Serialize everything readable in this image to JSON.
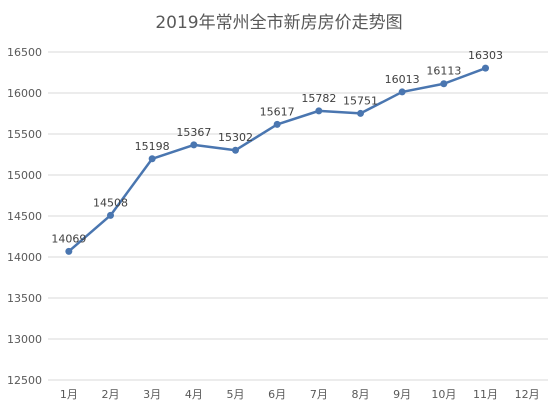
{
  "chart_data": {
    "type": "line",
    "title": "2019年常州全市新房房价走势图",
    "categories": [
      "1月",
      "2月",
      "3月",
      "4月",
      "5月",
      "6月",
      "7月",
      "8月",
      "9月",
      "10月",
      "11月",
      "12月"
    ],
    "series": [
      {
        "values": [
          14069,
          14508,
          15198,
          15367,
          15302,
          15617,
          15782,
          15751,
          16013,
          16113,
          16303,
          null
        ],
        "labels": [
          "14069",
          "14508",
          "15198",
          "15367",
          "15302",
          "15617",
          "15782",
          "15751",
          "16013",
          "16113",
          "16303",
          ""
        ]
      }
    ],
    "yticks": [
      "12500",
      "13000",
      "13500",
      "14000",
      "14500",
      "15000",
      "15500",
      "16000",
      "16500"
    ],
    "ylim": [
      12500,
      16500
    ],
    "grid": true,
    "legend": "none",
    "xlabel": "",
    "ylabel": "",
    "colors": {
      "line": "#4a76b0",
      "grid": "#d9d9d9",
      "text": "#595959"
    }
  }
}
